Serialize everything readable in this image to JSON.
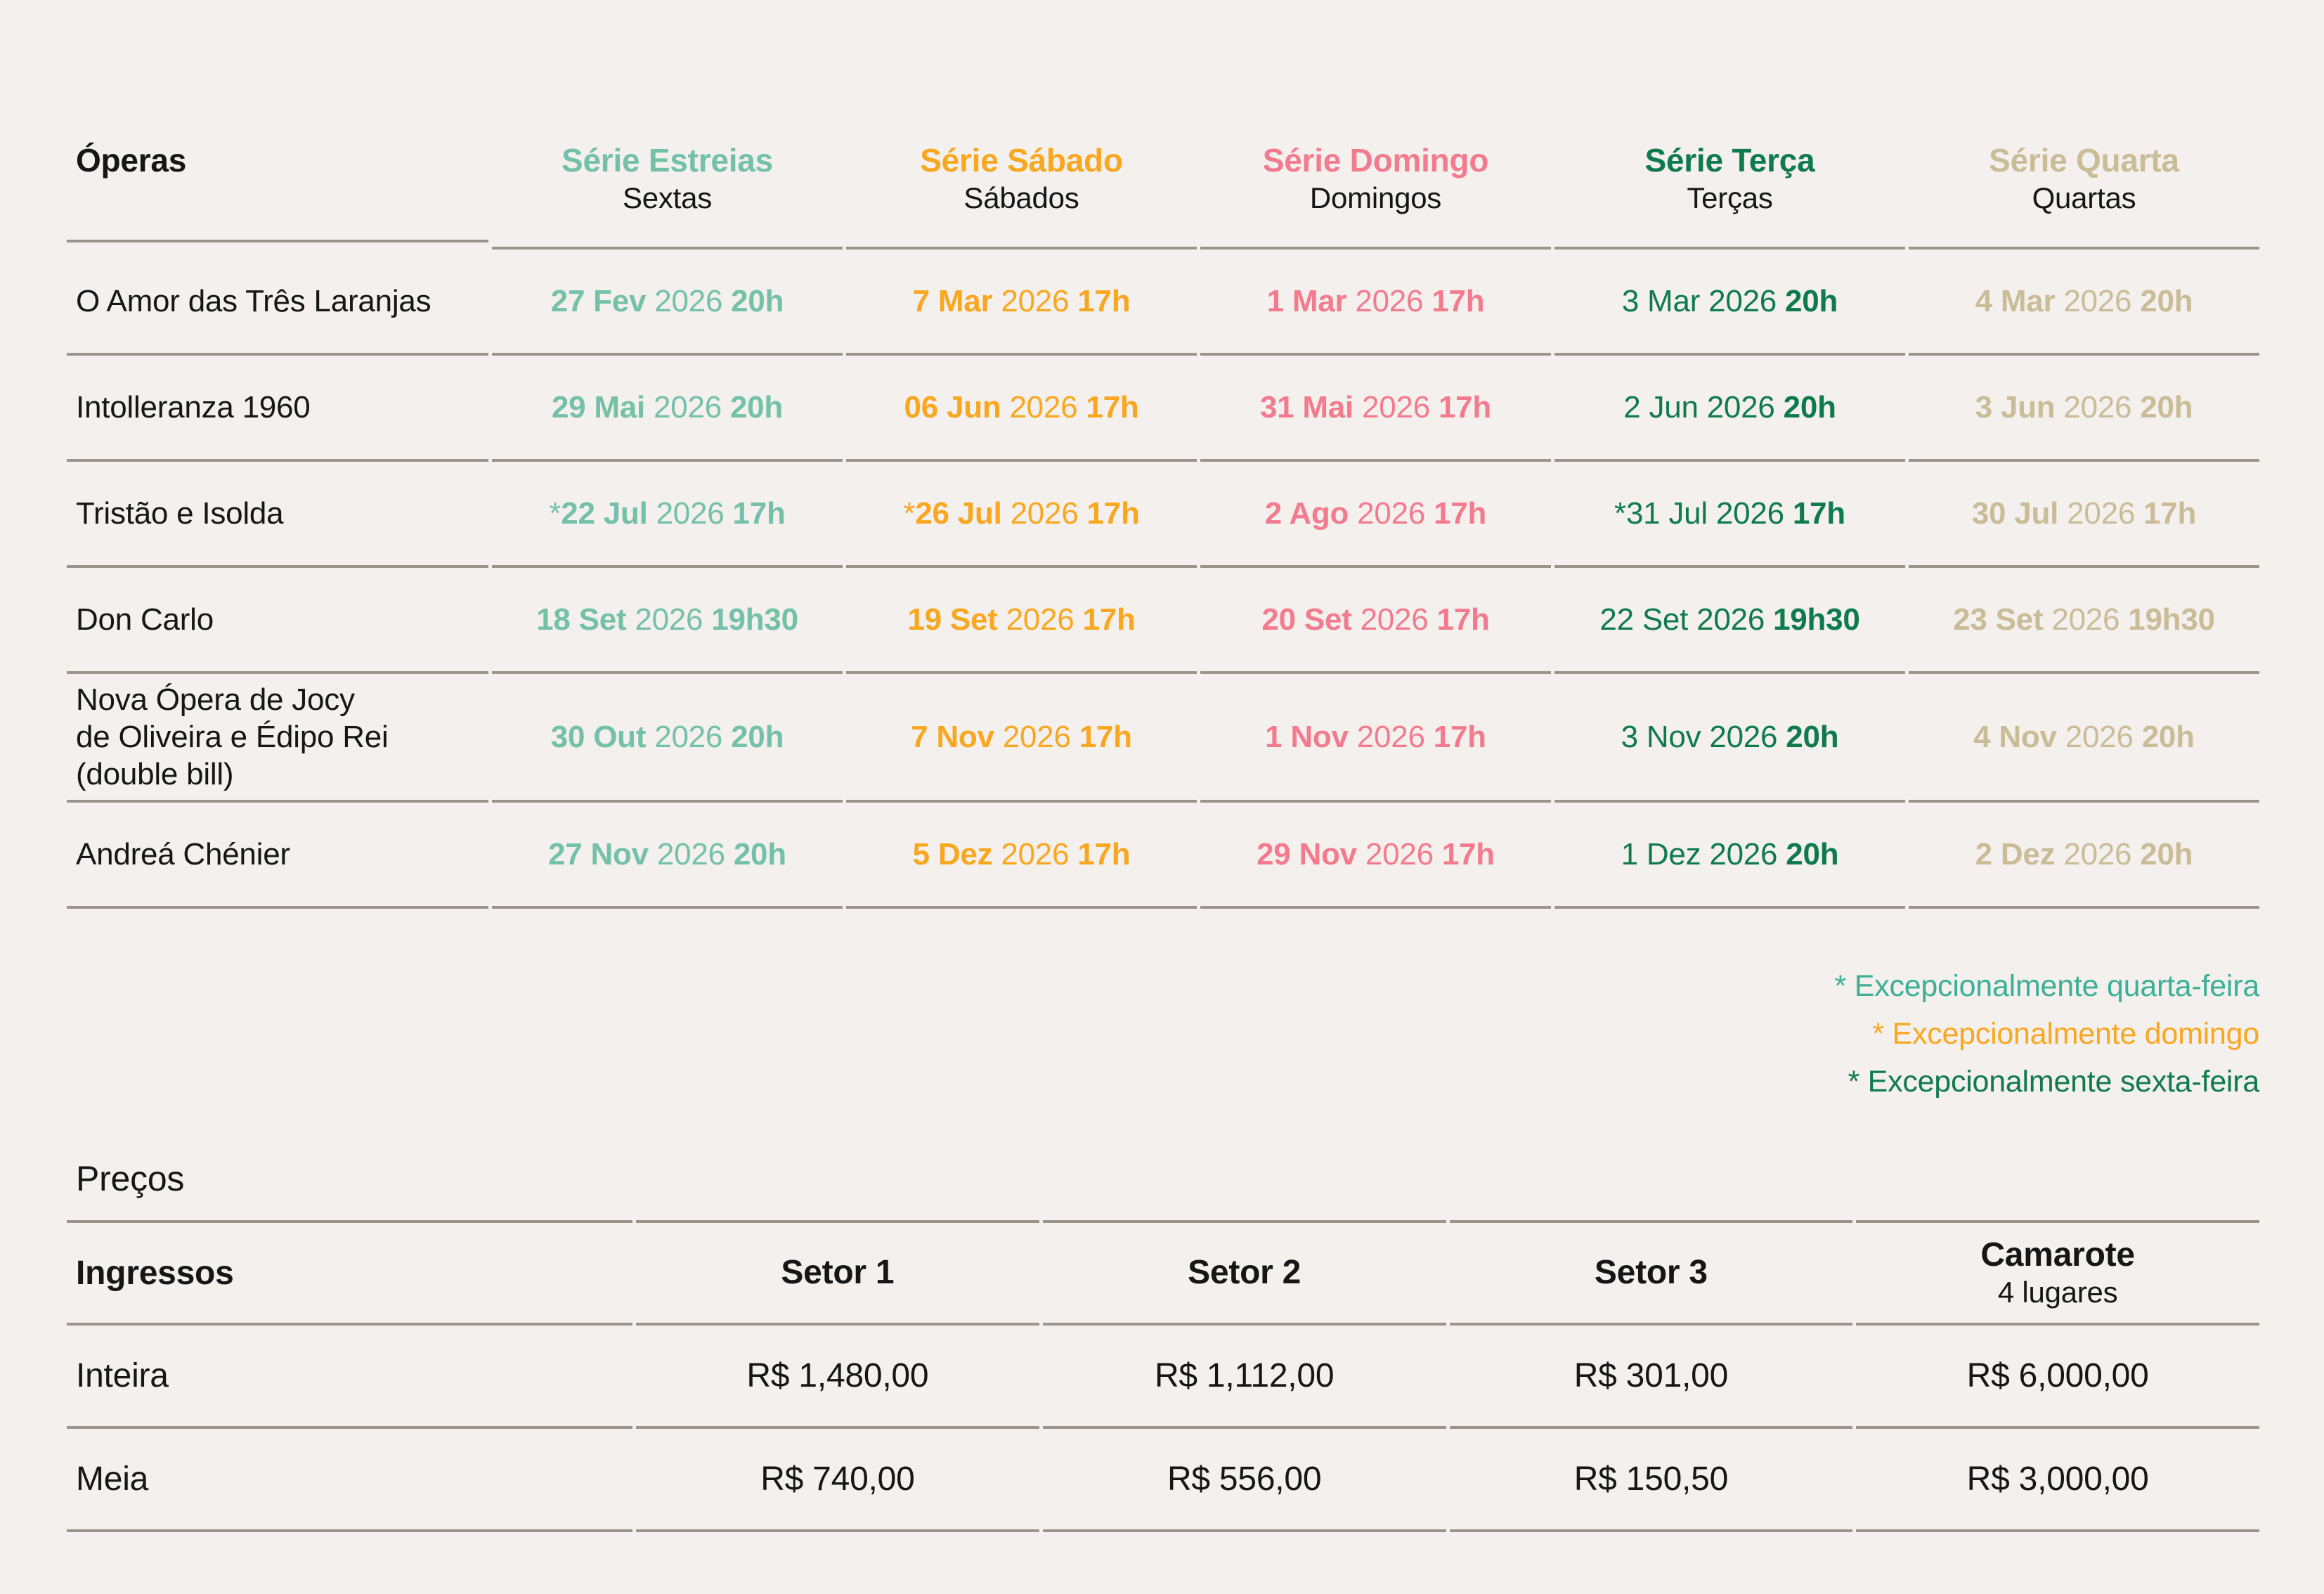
{
  "palette": {
    "background": "#f3f0ed",
    "text": "#161616",
    "rule": "#99948c"
  },
  "schedule": {
    "operas_header": "Óperas",
    "series": [
      {
        "title": "Série Estreias",
        "subtitle": "Sextas",
        "color": "#74c0a8",
        "day_bold": true
      },
      {
        "title": "Série Sábado",
        "subtitle": "Sábados",
        "color": "#f9a71f",
        "day_bold": true
      },
      {
        "title": "Série Domingo",
        "subtitle": "Domingos",
        "color": "#f37b8d",
        "day_bold": true
      },
      {
        "title": "Série Terça",
        "subtitle": "Terças",
        "color": "#0f7a4e",
        "day_bold": false
      },
      {
        "title": "Série Quarta",
        "subtitle": "Quartas",
        "color": "#cbbc98",
        "day_bold": true
      }
    ],
    "rows": [
      {
        "opera": [
          "O Amor das Três Laranjas"
        ],
        "dates": [
          {
            "dm": "27 Fev",
            "yr": "2026",
            "tm": "20h"
          },
          {
            "dm": "7 Mar",
            "yr": "2026",
            "tm": "17h"
          },
          {
            "dm": "1 Mar",
            "yr": "2026",
            "tm": "17h"
          },
          {
            "dm": "3 Mar",
            "yr": "2026",
            "tm": "20h"
          },
          {
            "dm": "4 Mar",
            "yr": "2026",
            "tm": "20h"
          }
        ]
      },
      {
        "opera": [
          "Intolleranza 1960"
        ],
        "dates": [
          {
            "dm": "29 Mai",
            "yr": "2026",
            "tm": "20h"
          },
          {
            "dm": "06 Jun",
            "yr": "2026",
            "tm": "17h"
          },
          {
            "dm": "31 Mai",
            "yr": "2026",
            "tm": "17h"
          },
          {
            "dm": "2 Jun",
            "yr": "2026",
            "tm": "20h"
          },
          {
            "dm": "3 Jun",
            "yr": "2026",
            "tm": "20h"
          }
        ]
      },
      {
        "opera": [
          "Tristão e Isolda"
        ],
        "dates": [
          {
            "pre": "*",
            "dm": "22 Jul",
            "yr": "2026",
            "tm": "17h"
          },
          {
            "pre": "*",
            "dm": "26 Jul",
            "yr": "2026",
            "tm": "17h"
          },
          {
            "dm": "2 Ago",
            "yr": "2026",
            "tm": "17h"
          },
          {
            "pre": "*",
            "dm": "31 Jul",
            "yr": "2026",
            "tm": "17h"
          },
          {
            "dm": "30 Jul",
            "yr": "2026",
            "tm": "17h"
          }
        ]
      },
      {
        "opera": [
          "Don Carlo"
        ],
        "dates": [
          {
            "dm": "18 Set",
            "yr": "2026",
            "tm": "19h30"
          },
          {
            "dm": "19 Set",
            "yr": "2026",
            "tm": "17h"
          },
          {
            "dm": "20 Set",
            "yr": "2026",
            "tm": "17h"
          },
          {
            "dm": "22 Set",
            "yr": "2026",
            "tm": "19h30"
          },
          {
            "dm": "23 Set",
            "yr": "2026",
            "tm": "19h30"
          }
        ]
      },
      {
        "opera": [
          "Nova Ópera de Jocy",
          "de Oliveira e Édipo Rei",
          "(double bill)"
        ],
        "dates": [
          {
            "dm": "30 Out",
            "yr": "2026",
            "tm": "20h"
          },
          {
            "dm": "7 Nov",
            "yr": "2026",
            "tm": "17h"
          },
          {
            "dm": "1 Nov",
            "yr": "2026",
            "tm": "17h"
          },
          {
            "dm": "3 Nov",
            "yr": "2026",
            "tm": "20h"
          },
          {
            "dm": "4 Nov",
            "yr": "2026",
            "tm": "20h"
          }
        ]
      },
      {
        "opera": [
          "Andreá Chénier"
        ],
        "dates": [
          {
            "dm": "27 Nov",
            "yr": "2026",
            "tm": "20h"
          },
          {
            "dm": "5 Dez",
            "yr": "2026",
            "tm": "17h"
          },
          {
            "dm": "29 Nov",
            "yr": "2026",
            "tm": "17h"
          },
          {
            "dm": "1 Dez",
            "yr": "2026",
            "tm": "20h"
          },
          {
            "dm": "2 Dez",
            "yr": "2026",
            "tm": "20h"
          }
        ]
      }
    ]
  },
  "notes": [
    {
      "text": "* Excepcionalmente quarta-feira",
      "color": "#3cb096"
    },
    {
      "text": "* Excepcionalmente domingo",
      "color": "#f9a71f"
    },
    {
      "text": "* Excepcionalmente sexta-feira",
      "color": "#0f7a4e"
    }
  ],
  "prices": {
    "title": "Preços",
    "tickets_header": "Ingressos",
    "columns": [
      {
        "title": "Setor 1"
      },
      {
        "title": "Setor 2"
      },
      {
        "title": "Setor 3"
      },
      {
        "title": "Camarote",
        "subtitle": "4 lugares"
      }
    ],
    "rows": [
      {
        "label": "Inteira",
        "values": [
          "R$ 1,480,00",
          "R$ 1,112,00",
          "R$ 301,00",
          "R$ 6,000,00"
        ]
      },
      {
        "label": "Meia",
        "values": [
          "R$ 740,00",
          "R$ 556,00",
          "R$ 150,50",
          "R$ 3,000,00"
        ]
      }
    ]
  }
}
